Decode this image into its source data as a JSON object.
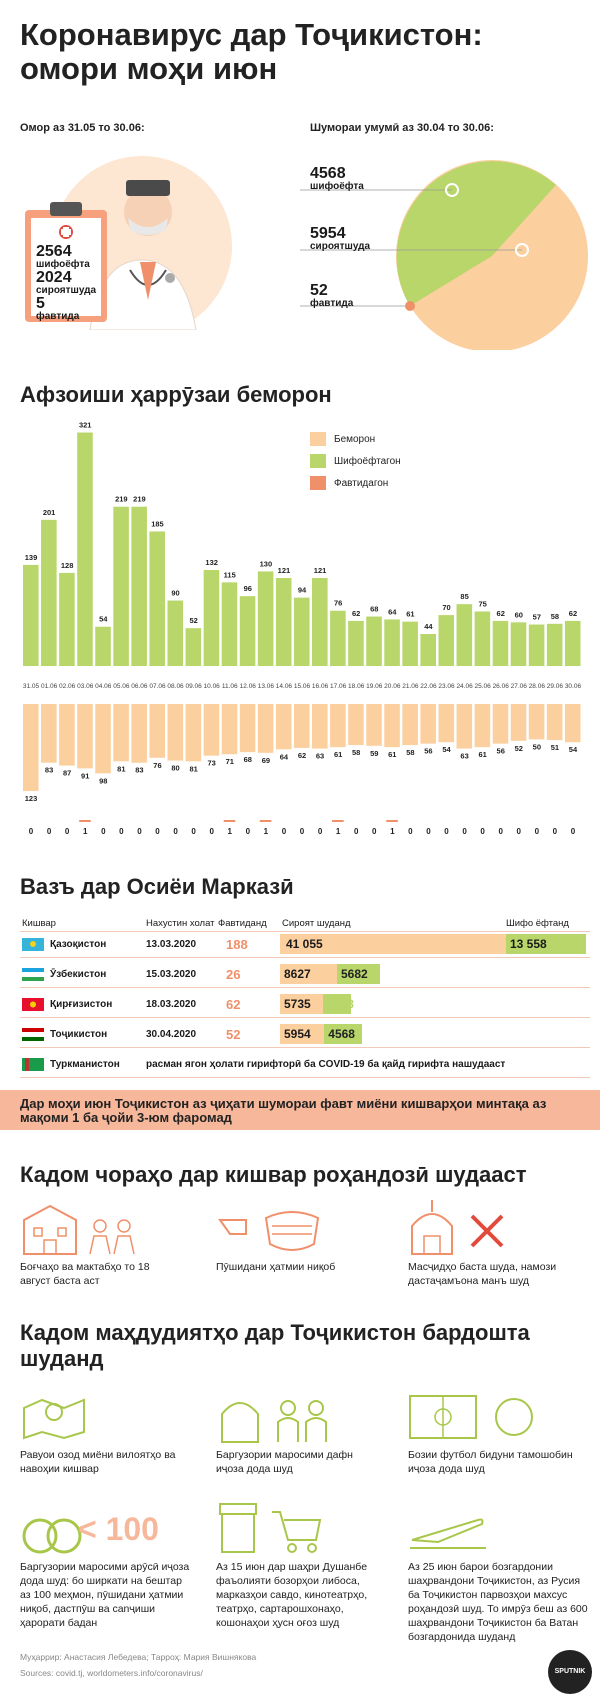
{
  "title": "Коронавирус дар Тоҷикистон: омори моҳи июн",
  "stats_month": {
    "label": "Омор аз 31.05 то 30.06:",
    "recovered": "2564",
    "recovered_label": "шифоёфта",
    "infected": "2024",
    "infected_label": "сироятшуда",
    "dead": "5",
    "dead_label": "фавтида"
  },
  "stats_total": {
    "label": "Шумораи умумӣ аз 30.04 то 30.06:",
    "recovered": "4568",
    "recovered_label": "шифоёфта",
    "infected": "5954",
    "infected_label": "сироятшуда",
    "dead": "52",
    "dead_label": "фавтида"
  },
  "colors": {
    "infected": "#fccf9f",
    "recovered": "#b8d66a",
    "dead": "#f0906a",
    "accent_bar": "#f7b79a"
  },
  "growth": {
    "title": "Афзоиши ҳаррӯзаи беморон",
    "legend": [
      "Беморон",
      "Шифоёфтагон",
      "Фавтидагон"
    ]
  },
  "chart_data": {
    "type": "bar",
    "categories": [
      "31.05",
      "01.06",
      "02.06",
      "03.06",
      "04.06",
      "05.06",
      "06.06",
      "07.06",
      "08.06",
      "09.06",
      "10.06",
      "11.06",
      "12.06",
      "13.06",
      "14.06",
      "15.06",
      "16.06",
      "17.06",
      "18.06",
      "19.06",
      "20.06",
      "21.06",
      "22.06",
      "23.06",
      "24.06",
      "25.06",
      "26.06",
      "27.06",
      "28.06",
      "29.06",
      "30.06"
    ],
    "series": [
      {
        "name": "Шифоёфтагон",
        "values": [
          139,
          201,
          128,
          321,
          54,
          219,
          219,
          185,
          90,
          52,
          132,
          115,
          96,
          130,
          121,
          94,
          121,
          76,
          62,
          68,
          64,
          61,
          44,
          70,
          85,
          75,
          62,
          60,
          57,
          58,
          62
        ]
      },
      {
        "name": "Беморон",
        "values": [
          123,
          83,
          87,
          91,
          98,
          81,
          83,
          76,
          80,
          81,
          73,
          71,
          68,
          69,
          64,
          62,
          63,
          61,
          58,
          59,
          61,
          58,
          56,
          54,
          63,
          61,
          56,
          52,
          50,
          51,
          54
        ]
      },
      {
        "name": "Фавтидагон",
        "values": [
          0,
          0,
          0,
          1,
          0,
          0,
          0,
          0,
          0,
          0,
          0,
          1,
          0,
          1,
          0,
          0,
          0,
          1,
          0,
          0,
          1,
          0,
          0,
          0,
          0,
          0,
          0,
          0,
          0,
          0,
          0
        ]
      }
    ]
  },
  "central_asia": {
    "title": "Вазъ дар Осиёи Марказӣ",
    "headers": [
      "Кишвар",
      "Нахустин холат",
      "Фавтиданд",
      "Сироят шуданд",
      "Шифо ёфтанд"
    ],
    "rows": [
      {
        "country": "Қазоқистон",
        "first": "13.03.2020",
        "dead": "188",
        "infected": "41 055",
        "recovered": "13 558"
      },
      {
        "country": "Ӯзбекистон",
        "first": "15.03.2020",
        "dead": "26",
        "infected": "8627",
        "recovered": "5682"
      },
      {
        "country": "Қирғизистон",
        "first": "18.03.2020",
        "dead": "62",
        "infected": "5735",
        "recovered": "2443"
      },
      {
        "country": "Тоҷикистон",
        "first": "30.04.2020",
        "dead": "52",
        "infected": "5954",
        "recovered": "4568"
      }
    ],
    "turkmen": {
      "country": "Туркманистон",
      "note": "расман ягон ҳолати гирифторӣ ба COVID-19 ба қайд гирифта нашудааст"
    }
  },
  "highlight": "Дар моҳи июн Тоҷикистон аз ҷиҳати шумораи фавт миёни кишварҳои минтақа аз мақоми 1 ба ҷойи 3-юм фаромад",
  "measures": {
    "title": "Кадом чораҳо дар кишвар роҳандозӣ шудааст",
    "items": [
      "Боғчаҳо ва мактабҳо то 18 август баста аст",
      "Пӯшидани ҳатмии ниқоб",
      "Масҷидҳо баста шуда, намози дастаҷамъона манъ шуд"
    ]
  },
  "restrictions": {
    "title": "Кадом маҳдудиятҳо дар Тоҷикистон бардошта шуданд",
    "items": [
      "Равуои озод миёни вилоятҳо ва навоҳии кишвар",
      "Баргузории маросими дафн иҷоза дода шуд",
      "Бозии футбол бидуни тамошобин иҷоза дода шуд",
      "Баргузории маросими арӯсӣ иҷоза дода шуд: бо ширкати на бештар аз 100 меҳмон, пӯшидани ҳатмии ниқоб, дастпӯш ва сanҷиши ҳарорати бадан",
      "Аз 15 июн дар шаҳри Душанбе фаъолияти бозорҳои либоса, марказҳои савдо, кинотеатрҳо, театрҳо, сартарошхонаҳо, кошонаҳои ҳусн оғоз шуд",
      "Аз 25 июн барои бозгардонии шаҳрвандони Тоҷикистон, аз Русия ба Тоҷикистон парвозҳои махсус роҳандозӣ шуд. То имрӯз беш аз 600 шаҳрвандони Тоҷикистон ба Ватан бозгардонида шуданд"
    ],
    "wedding_limit": "< 100"
  },
  "footer": {
    "credits": "Муҳаррир: Анастасия Лебедева; Тарроҳ: Мария Вишнякова",
    "sources": "Sources: covid.tj, worldometers.info/coronavirus/",
    "brand": "SPUTNIK"
  }
}
